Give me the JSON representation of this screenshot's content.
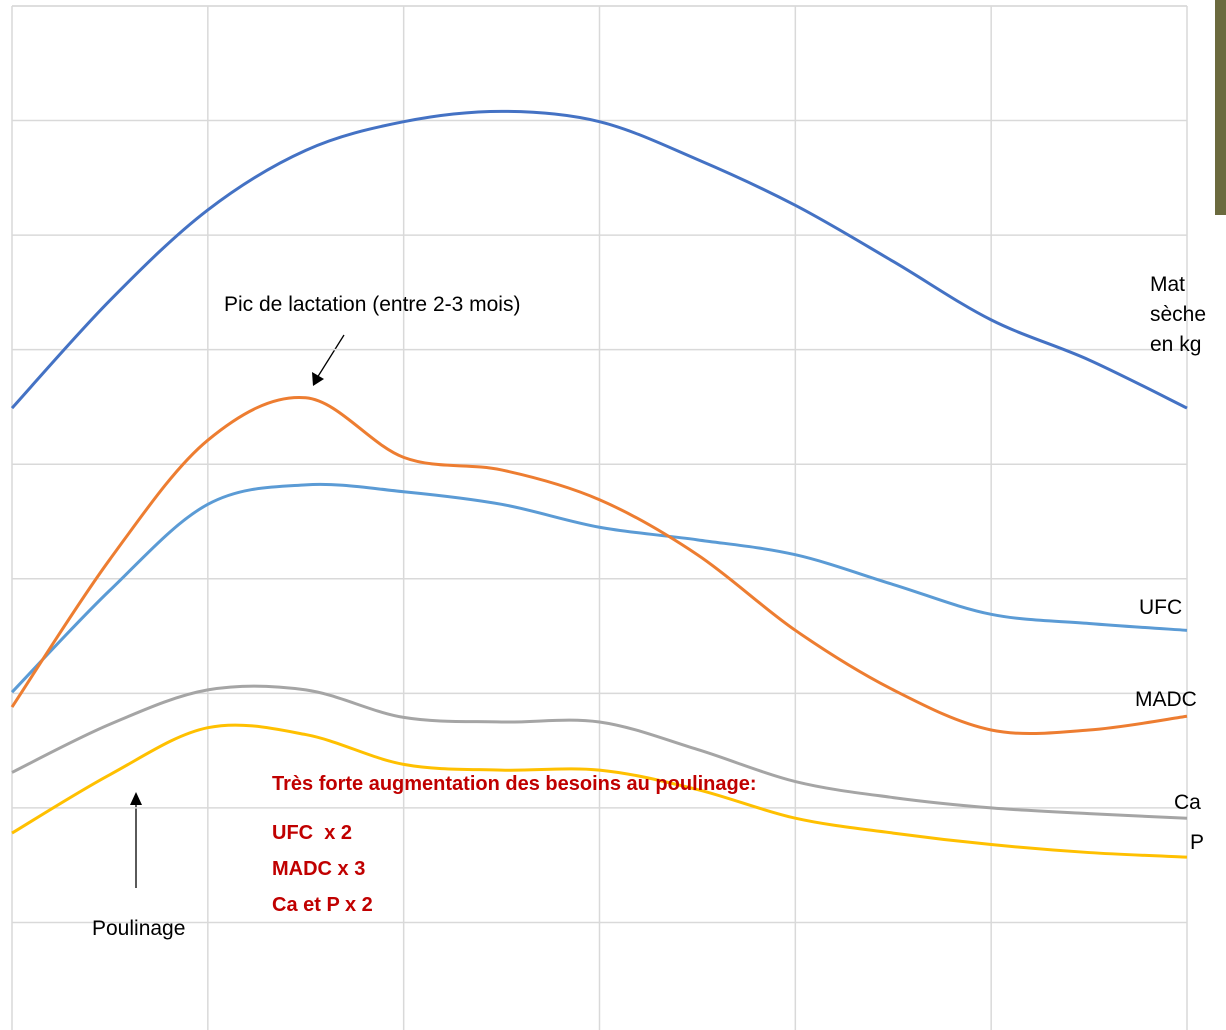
{
  "chart_data": {
    "type": "line",
    "x": [
      0,
      0.5,
      1,
      1.5,
      2,
      2.5,
      3,
      3.5,
      4,
      4.5,
      5,
      5.5,
      6
    ],
    "xlim": [
      0,
      6
    ],
    "xticks": [
      0,
      1,
      2,
      3,
      4,
      5,
      6
    ],
    "ylim": [
      0,
      9
    ],
    "yticks": [
      1,
      2,
      3,
      4,
      5,
      6,
      7,
      8,
      9
    ],
    "grid": true,
    "series": [
      {
        "name": "Mat sèche en kg",
        "color": "#4472c4",
        "values": [
          5.49,
          6.43,
          7.22,
          7.74,
          7.99,
          8.08,
          7.99,
          7.66,
          7.26,
          6.77,
          6.26,
          5.91,
          5.49
        ]
      },
      {
        "name": "UFC",
        "color": "#5b9bd5",
        "values": [
          3.01,
          3.9,
          4.65,
          4.82,
          4.76,
          4.65,
          4.45,
          4.34,
          4.21,
          3.95,
          3.69,
          3.61,
          3.55
        ]
      },
      {
        "name": "MADC",
        "color": "#ed7d31",
        "values": [
          2.88,
          4.17,
          5.21,
          5.58,
          5.06,
          4.95,
          4.69,
          4.21,
          3.55,
          3.03,
          2.68,
          2.68,
          2.8
        ]
      },
      {
        "name": "Ca",
        "color": "#a5a5a5",
        "values": [
          2.31,
          2.73,
          3.03,
          3.03,
          2.79,
          2.75,
          2.75,
          2.51,
          2.23,
          2.09,
          2.0,
          1.95,
          1.91
        ]
      },
      {
        "name": "P",
        "color": "#ffc000",
        "values": [
          1.78,
          2.29,
          2.7,
          2.64,
          2.38,
          2.33,
          2.33,
          2.16,
          1.91,
          1.78,
          1.68,
          1.61,
          1.57
        ]
      }
    ],
    "annotations": {
      "peak": "Pic de lactation (entre 2-3 mois)",
      "foaling": "Poulinage",
      "note": [
        "Très forte augmentation des besoins au poulinage:",
        "UFC  x 2",
        "MADC x 3",
        "Ca et P x 2"
      ]
    }
  }
}
